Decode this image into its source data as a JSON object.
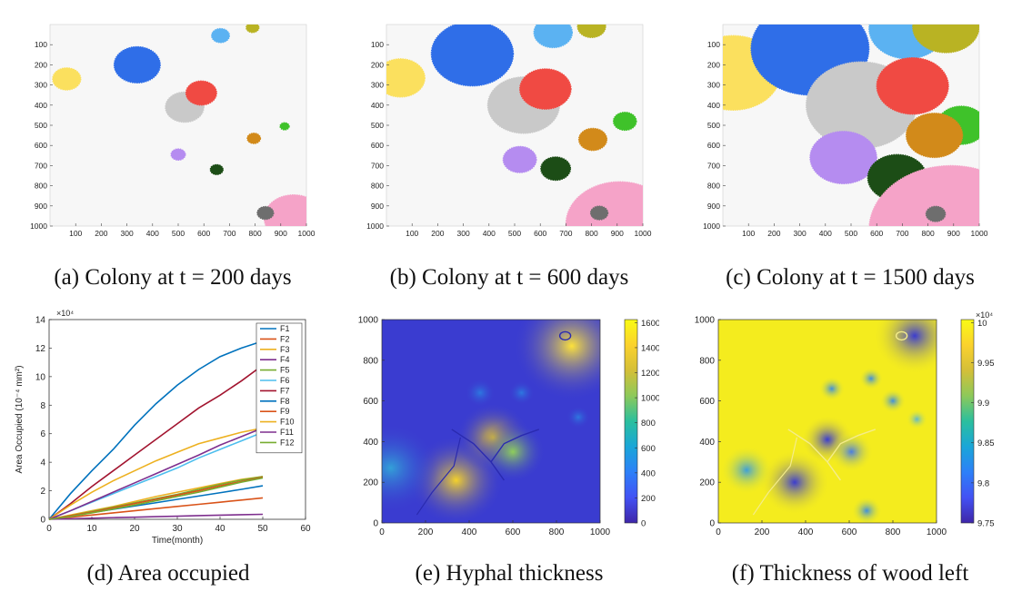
{
  "colors": {
    "yellow": "#fbe05e",
    "blue": "#2f6ee8",
    "light_blue": "#5bb2f2",
    "olive": "#b9b323",
    "gray": "#c9c9c9",
    "red": "#f04a43",
    "purple": "#b58cf0",
    "orange": "#d28a1a",
    "green": "#3fc22a",
    "dark_green": "#1c4d16",
    "pink": "#f5a3c8",
    "dark_gray": "#6e6e6e"
  },
  "captions": {
    "a": "(a) Colony at t = 200 days",
    "b": "(b) Colony at t = 600 days",
    "c": "(c) Colony at t = 1500 days",
    "d": "(d) Area occupied",
    "e": "(e) Hyphal thickness",
    "f": "(f) Thickness of wood left"
  },
  "chart_data": [
    {
      "type": "scatter",
      "panel": "a",
      "xlim": [
        0,
        1000
      ],
      "ylim": [
        0,
        1000
      ],
      "y_reversed": true,
      "x_ticks": [
        100,
        200,
        300,
        400,
        500,
        600,
        700,
        800,
        900,
        1000
      ],
      "y_ticks": [
        100,
        200,
        300,
        400,
        500,
        600,
        700,
        800,
        900,
        1000
      ],
      "colonies": [
        {
          "color": "yellow",
          "x": 65,
          "y": 270,
          "r": 55
        },
        {
          "color": "blue",
          "x": 340,
          "y": 200,
          "r": 90
        },
        {
          "color": "light_blue",
          "x": 665,
          "y": 55,
          "r": 35
        },
        {
          "color": "olive",
          "x": 790,
          "y": 15,
          "r": 25
        },
        {
          "color": "gray",
          "x": 525,
          "y": 410,
          "r": 75
        },
        {
          "color": "red",
          "x": 590,
          "y": 340,
          "r": 60
        },
        {
          "color": "green",
          "x": 915,
          "y": 505,
          "r": 18
        },
        {
          "color": "orange",
          "x": 795,
          "y": 565,
          "r": 26
        },
        {
          "color": "purple",
          "x": 500,
          "y": 645,
          "r": 28
        },
        {
          "color": "dark_green",
          "x": 650,
          "y": 720,
          "r": 25
        },
        {
          "color": "pink",
          "x": 950,
          "y": 960,
          "r": 115
        },
        {
          "color": "dark_gray",
          "x": 840,
          "y": 935,
          "r": 32
        }
      ]
    },
    {
      "type": "scatter",
      "panel": "b",
      "xlim": [
        0,
        1000
      ],
      "ylim": [
        0,
        1000
      ],
      "y_reversed": true,
      "x_ticks": [
        100,
        200,
        300,
        400,
        500,
        600,
        700,
        800,
        900,
        1000
      ],
      "y_ticks": [
        100,
        200,
        300,
        400,
        500,
        600,
        700,
        800,
        900,
        1000
      ],
      "colonies": [
        {
          "color": "yellow",
          "x": 55,
          "y": 265,
          "r": 95
        },
        {
          "color": "blue",
          "x": 335,
          "y": 145,
          "r": 160
        },
        {
          "color": "light_blue",
          "x": 650,
          "y": 40,
          "r": 75
        },
        {
          "color": "olive",
          "x": 800,
          "y": 10,
          "r": 55
        },
        {
          "color": "gray",
          "x": 535,
          "y": 400,
          "r": 140
        },
        {
          "color": "red",
          "x": 620,
          "y": 320,
          "r": 100
        },
        {
          "color": "green",
          "x": 930,
          "y": 480,
          "r": 45
        },
        {
          "color": "orange",
          "x": 805,
          "y": 570,
          "r": 55
        },
        {
          "color": "purple",
          "x": 520,
          "y": 670,
          "r": 65
        },
        {
          "color": "dark_green",
          "x": 660,
          "y": 715,
          "r": 58
        },
        {
          "color": "pink",
          "x": 910,
          "y": 990,
          "r": 210
        },
        {
          "color": "dark_gray",
          "x": 830,
          "y": 935,
          "r": 34
        }
      ]
    },
    {
      "type": "scatter",
      "panel": "c",
      "xlim": [
        0,
        1000
      ],
      "ylim": [
        0,
        1000
      ],
      "y_reversed": true,
      "x_ticks": [
        100,
        200,
        300,
        400,
        500,
        600,
        700,
        800,
        900,
        1000
      ],
      "y_ticks": [
        100,
        200,
        300,
        400,
        500,
        600,
        700,
        800,
        900,
        1000
      ],
      "colonies": [
        {
          "color": "yellow",
          "x": 40,
          "y": 240,
          "r": 185
        },
        {
          "color": "light_blue",
          "x": 720,
          "y": 20,
          "r": 150
        },
        {
          "color": "olive",
          "x": 870,
          "y": 10,
          "r": 130
        },
        {
          "color": "blue",
          "x": 340,
          "y": 120,
          "r": 230
        },
        {
          "color": "gray",
          "x": 540,
          "y": 400,
          "r": 215
        },
        {
          "color": "red",
          "x": 740,
          "y": 305,
          "r": 140
        },
        {
          "color": "green",
          "x": 930,
          "y": 500,
          "r": 95
        },
        {
          "color": "orange",
          "x": 825,
          "y": 550,
          "r": 110
        },
        {
          "color": "purple",
          "x": 470,
          "y": 660,
          "r": 130
        },
        {
          "color": "dark_green",
          "x": 680,
          "y": 760,
          "r": 115
        },
        {
          "color": "pink",
          "x": 890,
          "y": 1020,
          "r": 320
        },
        {
          "color": "dark_gray",
          "x": 830,
          "y": 940,
          "r": 38
        }
      ]
    },
    {
      "type": "line",
      "panel": "d",
      "ylabel": "Area Occupied (10⁻⁴ mm²)",
      "xlabel": "Time(month)",
      "y_exponent": "×10⁴",
      "xlim": [
        0,
        60
      ],
      "ylim": [
        0,
        14
      ],
      "x_ticks": [
        0,
        10,
        20,
        30,
        40,
        50,
        60
      ],
      "y_ticks": [
        0,
        2,
        4,
        6,
        8,
        10,
        12,
        14
      ],
      "x": [
        0,
        5,
        10,
        15,
        20,
        25,
        30,
        35,
        40,
        45,
        50
      ],
      "series": [
        {
          "name": "F1",
          "color": "#0072bd",
          "values": [
            0,
            1.8,
            3.4,
            4.9,
            6.6,
            8.1,
            9.4,
            10.5,
            11.4,
            12.0,
            12.5
          ]
        },
        {
          "name": "F2",
          "color": "#d95319",
          "values": [
            0,
            0.15,
            0.3,
            0.45,
            0.6,
            0.75,
            0.9,
            1.05,
            1.2,
            1.35,
            1.5
          ]
        },
        {
          "name": "F3",
          "color": "#edb120",
          "values": [
            0,
            0.3,
            0.6,
            0.9,
            1.25,
            1.6,
            1.9,
            2.2,
            2.5,
            2.8,
            3.0
          ]
        },
        {
          "name": "F4",
          "color": "#7e2f8e",
          "values": [
            0,
            0.04,
            0.08,
            0.12,
            0.15,
            0.19,
            0.22,
            0.26,
            0.29,
            0.32,
            0.35
          ]
        },
        {
          "name": "F5",
          "color": "#77ac30",
          "values": [
            0,
            0.25,
            0.55,
            0.85,
            1.15,
            1.45,
            1.75,
            2.1,
            2.45,
            2.75,
            3.0
          ]
        },
        {
          "name": "F6",
          "color": "#4dbeee",
          "values": [
            0,
            0.6,
            1.2,
            1.8,
            2.4,
            3.0,
            3.6,
            4.3,
            4.9,
            5.5,
            6.1
          ]
        },
        {
          "name": "F7",
          "color": "#a2142f",
          "values": [
            0,
            1.1,
            2.3,
            3.4,
            4.5,
            5.6,
            6.7,
            7.8,
            8.7,
            9.7,
            10.8
          ]
        },
        {
          "name": "F8",
          "color": "#0072bd",
          "values": [
            0,
            0.24,
            0.47,
            0.7,
            0.93,
            1.16,
            1.4,
            1.63,
            1.86,
            2.1,
            2.35
          ]
        },
        {
          "name": "F9",
          "color": "#d95319",
          "values": [
            0,
            0.25,
            0.5,
            0.8,
            1.1,
            1.4,
            1.7,
            2.0,
            2.35,
            2.65,
            2.95
          ]
        },
        {
          "name": "F10",
          "color": "#edb120",
          "values": [
            0,
            1.0,
            1.9,
            2.7,
            3.4,
            4.1,
            4.7,
            5.3,
            5.7,
            6.1,
            6.4
          ]
        },
        {
          "name": "F11",
          "color": "#7e2f8e",
          "values": [
            0,
            0.6,
            1.25,
            1.9,
            2.55,
            3.2,
            3.85,
            4.5,
            5.2,
            5.8,
            6.4
          ]
        },
        {
          "name": "F12",
          "color": "#77ac30",
          "values": [
            0,
            0.2,
            0.45,
            0.72,
            1.0,
            1.3,
            1.6,
            1.9,
            2.25,
            2.6,
            2.9
          ]
        }
      ],
      "legend": "top-right"
    },
    {
      "type": "heatmap",
      "panel": "e",
      "xlim": [
        0,
        1000
      ],
      "ylim": [
        0,
        1000
      ],
      "x_ticks": [
        0,
        200,
        400,
        600,
        800,
        1000
      ],
      "y_ticks": [
        0,
        200,
        400,
        600,
        800,
        1000
      ],
      "colorbar_ticks": [
        0,
        200,
        400,
        600,
        800,
        1000,
        1200,
        1400,
        1600
      ],
      "background": "#3a3cd0",
      "blobs": [
        {
          "x": 340,
          "y": 210,
          "r": 220,
          "peak": "#f5d22a"
        },
        {
          "x": 510,
          "y": 420,
          "r": 170,
          "peak": "#e6c52a"
        },
        {
          "x": 600,
          "y": 350,
          "r": 150,
          "peak": "#8fcf5a"
        },
        {
          "x": 870,
          "y": 870,
          "r": 270,
          "peak": "#fde23a"
        },
        {
          "x": 40,
          "y": 270,
          "r": 220,
          "peak": "#33a0d8"
        },
        {
          "x": 450,
          "y": 640,
          "r": 70,
          "peak": "#2d78e0"
        },
        {
          "x": 640,
          "y": 640,
          "r": 60,
          "peak": "#2d78e0"
        },
        {
          "x": 900,
          "y": 520,
          "r": 55,
          "peak": "#2d78e0"
        }
      ]
    },
    {
      "type": "heatmap",
      "panel": "f",
      "xlim": [
        0,
        1000
      ],
      "ylim": [
        0,
        1000
      ],
      "x_ticks": [
        0,
        200,
        400,
        600,
        800,
        1000
      ],
      "y_ticks": [
        0,
        200,
        400,
        600,
        800,
        1000
      ],
      "colorbar_ticks": [
        "9.75",
        "9.8",
        "9.85",
        "9.9",
        "9.95",
        "10"
      ],
      "colorbar_exponent": "×10⁴",
      "background": "#f4ec1e",
      "blobs": [
        {
          "x": 350,
          "y": 200,
          "r": 160,
          "peak": "#3b3ccf"
        },
        {
          "x": 130,
          "y": 260,
          "r": 120,
          "peak": "#3ea0d8"
        },
        {
          "x": 500,
          "y": 410,
          "r": 120,
          "peak": "#3b3ccf"
        },
        {
          "x": 610,
          "y": 350,
          "r": 100,
          "peak": "#4a7ee0"
        },
        {
          "x": 900,
          "y": 920,
          "r": 190,
          "peak": "#3b3ccf"
        },
        {
          "x": 520,
          "y": 660,
          "r": 60,
          "peak": "#3e8fde"
        },
        {
          "x": 700,
          "y": 710,
          "r": 55,
          "peak": "#3e8fde"
        },
        {
          "x": 800,
          "y": 600,
          "r": 60,
          "peak": "#3e8fde"
        },
        {
          "x": 910,
          "y": 510,
          "r": 50,
          "peak": "#5eb8d0"
        },
        {
          "x": 680,
          "y": 60,
          "r": 70,
          "peak": "#3e8fde"
        }
      ]
    }
  ]
}
